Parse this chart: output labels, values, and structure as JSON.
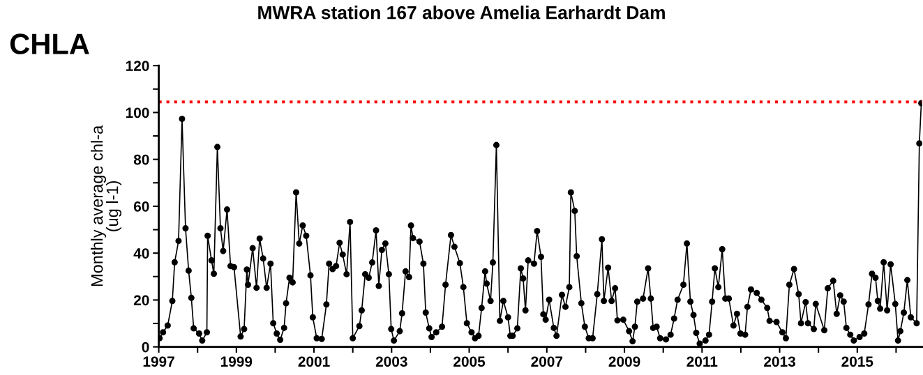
{
  "chart_data": {
    "type": "line",
    "title": "MWRA station 167 above Amelia Earhardt Dam",
    "ylabel": "Monthly average chl-a\n(ug l-1)",
    "annotations": [
      "CHLA"
    ],
    "x": [
      1997.02,
      1997.11,
      1997.23,
      1997.35,
      1997.41,
      1997.51,
      1997.6,
      1997.69,
      1997.77,
      1997.84,
      1997.9,
      1998.04,
      1998.12,
      1998.24,
      1998.26,
      1998.36,
      1998.42,
      1998.51,
      1998.59,
      1998.66,
      1998.76,
      1998.85,
      1998.94,
      1999.11,
      1999.2,
      1999.27,
      1999.3,
      1999.42,
      1999.52,
      1999.6,
      1999.69,
      1999.78,
      1999.88,
      1999.95,
      2000.04,
      2000.13,
      2000.23,
      2000.28,
      2000.37,
      2000.45,
      2000.54,
      2000.62,
      2000.71,
      2000.8,
      2000.91,
      2000.97,
      2001.07,
      2001.2,
      2001.32,
      2001.39,
      2001.48,
      2001.57,
      2001.66,
      2001.74,
      2001.84,
      2001.93,
      2002.0,
      2002.17,
      2002.23,
      2002.32,
      2002.41,
      2002.5,
      2002.6,
      2002.67,
      2002.75,
      2002.84,
      2002.93,
      2002.99,
      2003.06,
      2003.21,
      2003.27,
      2003.36,
      2003.45,
      2003.5,
      2003.55,
      2003.72,
      2003.82,
      2003.88,
      2003.97,
      2004.03,
      2004.15,
      2004.3,
      2004.39,
      2004.53,
      2004.62,
      2004.76,
      2004.85,
      2004.94,
      2005.06,
      2005.15,
      2005.24,
      2005.32,
      2005.41,
      2005.45,
      2005.55,
      2005.61,
      2005.7,
      2005.79,
      2005.88,
      2006.0,
      2006.06,
      2006.12,
      2006.24,
      2006.33,
      2006.39,
      2006.45,
      2006.52,
      2006.67,
      2006.75,
      2006.85,
      2006.91,
      2006.97,
      2007.06,
      2007.18,
      2007.25,
      2007.39,
      2007.48,
      2007.58,
      2007.62,
      2007.72,
      2007.77,
      2007.89,
      2007.98,
      2008.08,
      2008.18,
      2008.3,
      2008.42,
      2008.47,
      2008.58,
      2008.67,
      2008.76,
      2008.82,
      2008.97,
      2009.12,
      2009.21,
      2009.27,
      2009.33,
      2009.48,
      2009.61,
      2009.68,
      2009.74,
      2009.83,
      2009.92,
      2010.07,
      2010.19,
      2010.28,
      2010.37,
      2010.52,
      2010.61,
      2010.7,
      2010.78,
      2010.85,
      2010.94,
      2011.09,
      2011.18,
      2011.26,
      2011.33,
      2011.42,
      2011.52,
      2011.6,
      2011.69,
      2011.81,
      2011.9,
      2011.99,
      2012.11,
      2012.17,
      2012.26,
      2012.41,
      2012.53,
      2012.68,
      2012.74,
      2012.92,
      2013.07,
      2013.16,
      2013.25,
      2013.37,
      2013.49,
      2013.55,
      2013.67,
      2013.73,
      2013.88,
      2013.93,
      2014.15,
      2014.24,
      2014.38,
      2014.47,
      2014.56,
      2014.65,
      2014.72,
      2014.82,
      2014.91,
      2015.06,
      2015.18,
      2015.29,
      2015.38,
      2015.47,
      2015.53,
      2015.59,
      2015.68,
      2015.77,
      2015.86,
      2015.98,
      2016.05,
      2016.11,
      2016.2,
      2016.29,
      2016.38,
      2016.53,
      2016.6,
      2016.65
    ],
    "series": [
      {
        "color": "#000000",
        "values": [
          3.7,
          6.2,
          9.1,
          19.6,
          36.1,
          45.2,
          97.3,
          50.6,
          32.5,
          20.9,
          7.9,
          5.7,
          2.7,
          6.2,
          47.4,
          36.9,
          31.2,
          85.3,
          50.6,
          40.9,
          58.6,
          34.5,
          34,
          4.4,
          7.6,
          33,
          26.5,
          42.1,
          25.2,
          46.2,
          37.7,
          25.2,
          35.5,
          10.1,
          5.7,
          3,
          8.1,
          18.6,
          29.5,
          27.5,
          65.9,
          44.1,
          51.8,
          47.4,
          30.5,
          12.6,
          3.7,
          3.4,
          18.1,
          35.5,
          33.2,
          34.5,
          44.4,
          39.4,
          31,
          53.3,
          3.7,
          8.9,
          15.6,
          31,
          29.5,
          36,
          49.7,
          26,
          41.4,
          44.1,
          31,
          7.6,
          2.7,
          6.7,
          14.3,
          32.2,
          29.8,
          51.8,
          46.4,
          44.9,
          35.5,
          14.6,
          7.9,
          4.2,
          6.2,
          8.6,
          26.5,
          47.7,
          42.7,
          35.7,
          25.5,
          10.1,
          6.2,
          3.7,
          4.7,
          16.6,
          32.2,
          27,
          19.6,
          36,
          86.1,
          11.1,
          19.6,
          12.6,
          4.7,
          4.7,
          7.9,
          33.5,
          29.2,
          15.6,
          36.9,
          35.5,
          49.4,
          38.4,
          13.9,
          11.6,
          20.1,
          8.1,
          4.7,
          22.2,
          17.1,
          25.5,
          65.9,
          58,
          38.7,
          18.6,
          8.6,
          3.7,
          3.7,
          22.5,
          45.9,
          19.6,
          33.8,
          19.6,
          25,
          11.3,
          11.6,
          6.7,
          2.4,
          8.6,
          19.3,
          20.6,
          33.5,
          20.6,
          8.1,
          8.6,
          3.7,
          3.2,
          5.2,
          12.1,
          20.1,
          26.5,
          44.1,
          19.3,
          13.6,
          6,
          1.4,
          2.7,
          5.2,
          19.3,
          33.5,
          25.5,
          41.7,
          20.6,
          20.6,
          9.1,
          14.1,
          5.7,
          5.2,
          17.1,
          24.5,
          23,
          20.1,
          16.6,
          11.1,
          10.6,
          6.2,
          3.7,
          26.5,
          33.2,
          22.5,
          10.1,
          19.1,
          10.1,
          7.6,
          18.3,
          7.1,
          25,
          28.2,
          14.1,
          22,
          19.3,
          8.1,
          5.2,
          2.7,
          4.2,
          5.7,
          18.1,
          31.2,
          29.5,
          19.6,
          16.3,
          36.1,
          15.6,
          35.2,
          18.3,
          2.7,
          6.7,
          14.6,
          28.5,
          12.6,
          10.1,
          86.8,
          104
        ]
      }
    ],
    "xlim": [
      1997,
      2016.67
    ],
    "xticks": [
      1997,
      {
        "value": 1998,
        "label": null
      },
      1999,
      {
        "value": 2000,
        "label": null
      },
      2001,
      {
        "value": 2002,
        "label": null
      },
      2003,
      {
        "value": 2004,
        "label": null
      },
      2005,
      {
        "value": 2006,
        "label": null
      },
      2007,
      {
        "value": 2008,
        "label": null
      },
      2009,
      {
        "value": 2010,
        "label": null
      },
      2011,
      {
        "value": 2012,
        "label": null
      },
      2013,
      {
        "value": 2014,
        "label": null
      },
      2015,
      {
        "value": 2016,
        "label": null
      }
    ],
    "ylim": [
      0,
      120
    ],
    "yticks": [
      0,
      {
        "value": 10,
        "label": null
      },
      20,
      {
        "value": 30,
        "label": null
      },
      40,
      {
        "value": 50,
        "label": null
      },
      60,
      {
        "value": 70,
        "label": null
      },
      80,
      {
        "value": 90,
        "label": null
      },
      100,
      {
        "value": 110,
        "label": null
      },
      120
    ],
    "ref_lines": [
      {
        "axis": "y",
        "value": 104.5,
        "color": "#ff0000",
        "line_style": "dotted"
      }
    ],
    "marker": "circle",
    "line_style": "solid",
    "grid": false
  }
}
